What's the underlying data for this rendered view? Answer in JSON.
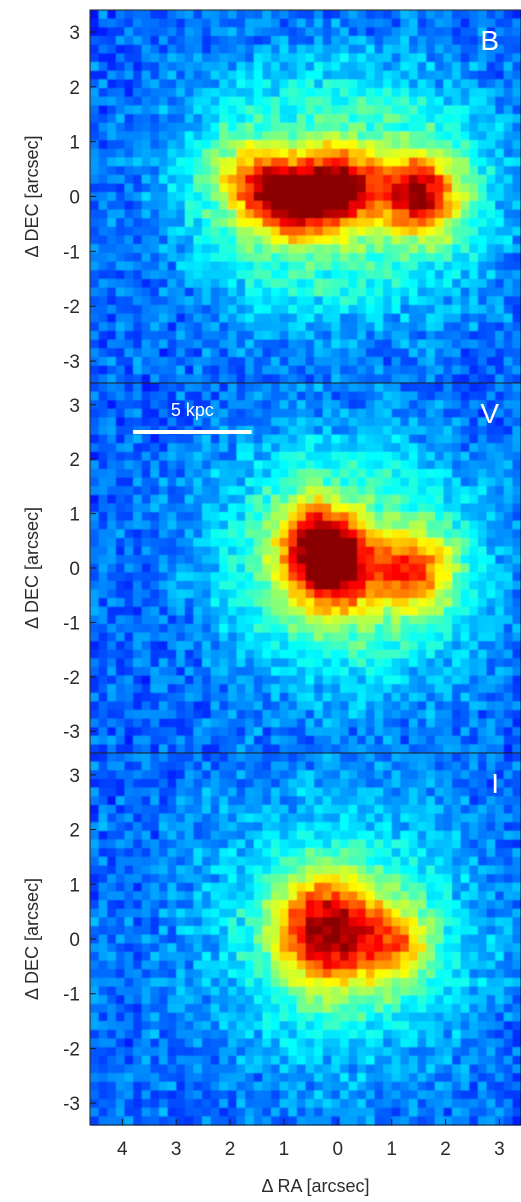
{
  "chart_data": [
    {
      "type": "heatmap",
      "panel_label": "B",
      "ylabel": "Δ DEC [arcsec]",
      "xlabel": "",
      "xlim": [
        4.6,
        -3.4
      ],
      "ylim": [
        -3.4,
        3.4
      ],
      "y_ticks": [
        "3",
        "2",
        "1",
        "0",
        "-1",
        "-2",
        "-3"
      ],
      "y_tick_values": [
        3,
        2,
        1,
        0,
        -1,
        -2,
        -3
      ],
      "x_tick_values": [
        4,
        3,
        2,
        1,
        0,
        -1,
        -2,
        -3
      ],
      "colormap": "jet",
      "sources": [
        {
          "x": 0.0,
          "y": 0.15,
          "peak": 1.0,
          "size": 0.55
        },
        {
          "x": -1.5,
          "y": 0.05,
          "peak": 0.95,
          "size": 0.5
        },
        {
          "x": 0.9,
          "y": -0.1,
          "peak": 0.8,
          "size": 0.5
        },
        {
          "x": 1.6,
          "y": 0.3,
          "peak": 0.55,
          "size": 0.45
        }
      ]
    },
    {
      "type": "heatmap",
      "panel_label": "V",
      "ylabel": "Δ DEC [arcsec]",
      "xlabel": "",
      "xlim": [
        4.6,
        -3.4
      ],
      "ylim": [
        -3.4,
        3.4
      ],
      "y_ticks": [
        "3",
        "2",
        "1",
        "0",
        "-1",
        "-2",
        "-3"
      ],
      "y_tick_values": [
        3,
        2,
        1,
        0,
        -1,
        -2,
        -3
      ],
      "x_tick_values": [
        4,
        3,
        2,
        1,
        0,
        -1,
        -2,
        -3
      ],
      "colormap": "jet",
      "scale_bar": {
        "label": "5 kpc",
        "ra_from": 3.8,
        "ra_to": 1.6,
        "dec": 2.5
      },
      "sources": [
        {
          "x": 0.1,
          "y": 0.0,
          "peak": 1.0,
          "size": 0.6
        },
        {
          "x": -1.4,
          "y": -0.05,
          "peak": 0.7,
          "size": 0.5
        },
        {
          "x": 0.4,
          "y": 0.55,
          "peak": 0.6,
          "size": 0.5
        }
      ]
    },
    {
      "type": "heatmap",
      "panel_label": "I",
      "ylabel": "Δ DEC [arcsec]",
      "xlabel": "Δ RA [arcsec]",
      "xlim": [
        4.6,
        -3.4
      ],
      "ylim": [
        -3.4,
        3.4
      ],
      "y_ticks": [
        "3",
        "2",
        "1",
        "0",
        "-1",
        "-2",
        "-3"
      ],
      "y_tick_values": [
        3,
        2,
        1,
        0,
        -1,
        -2,
        -3
      ],
      "x_ticks": [
        "4",
        "3",
        "2",
        "1",
        "0",
        "1",
        "2",
        "3"
      ],
      "x_tick_values": [
        4,
        3,
        2,
        1,
        0,
        -1,
        -2,
        -3
      ],
      "colormap": "jet",
      "sources": [
        {
          "x": 0.15,
          "y": 0.15,
          "peak": 1.0,
          "size": 0.7
        },
        {
          "x": -1.1,
          "y": -0.1,
          "peak": 0.45,
          "size": 0.45
        }
      ]
    }
  ]
}
